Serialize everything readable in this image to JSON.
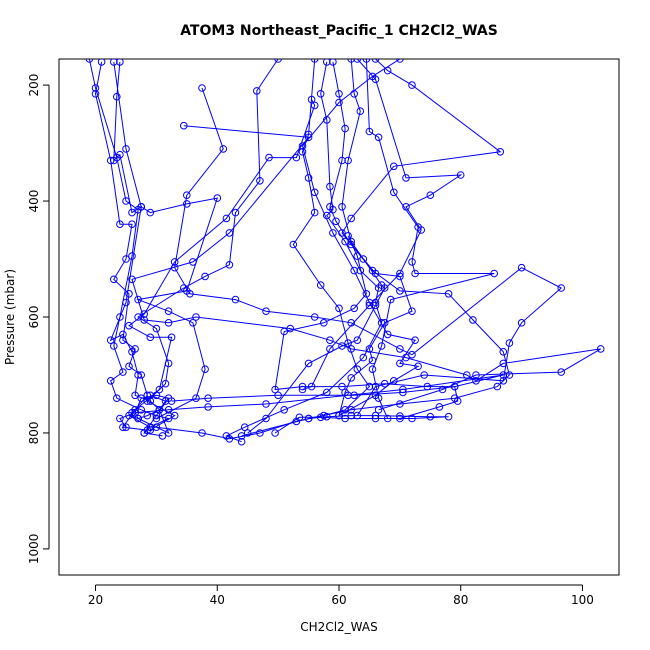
{
  "chart_data": {
    "type": "line",
    "title": "ATOM3 Northeast_Pacific_1 CH2Cl2_WAS",
    "xlabel": "CH2Cl2_WAS",
    "ylabel": "Pressure (mbar)",
    "xlim": [
      14,
      106
    ],
    "ylim": [
      1045,
      155
    ],
    "y_reversed": true,
    "grid": false,
    "legend": "none",
    "line_color": "#0000ff",
    "marker": "open-circle",
    "x_ticks": [
      20,
      40,
      60,
      80,
      100
    ],
    "y_ticks": [
      200,
      400,
      600,
      800,
      1000
    ],
    "x_tick_labels": [
      "20",
      "40",
      "60",
      "80",
      "100"
    ],
    "y_tick_labels": [
      "200",
      "400",
      "600",
      "800",
      "1000"
    ],
    "series": [
      {
        "x": [
          19,
          20,
          23.5,
          25,
          27,
          26,
          24,
          23,
          24.5,
          22.5,
          23.5,
          27.5,
          30,
          32,
          29,
          28,
          31
        ],
        "y": [
          155,
          205,
          325,
          400,
          415,
          495,
          600,
          650,
          695,
          710,
          740,
          760,
          770,
          775,
          790,
          800,
          805
        ]
      },
      {
        "x": [
          21,
          20,
          22.5,
          24,
          26,
          25,
          23,
          25.5,
          24.5,
          26.5,
          25.5,
          27.5,
          28.5,
          26.5,
          24.5,
          28.5
        ],
        "y": [
          160,
          215,
          330,
          440,
          440,
          500,
          535,
          560,
          640,
          655,
          685,
          700,
          735,
          760,
          790,
          795
        ]
      },
      {
        "x": [
          24,
          23.5,
          23,
          24,
          26,
          27.5,
          25,
          22.5,
          24.5,
          26,
          27,
          26.5,
          29,
          30.5,
          32,
          27,
          25.5,
          29
        ],
        "y": [
          160,
          220,
          330,
          320,
          420,
          410,
          575,
          640,
          630,
          660,
          700,
          735,
          745,
          760,
          800,
          775,
          770,
          790
        ]
      },
      {
        "x": [
          23,
          25,
          27.5,
          29,
          35,
          40,
          35,
          27,
          32,
          36,
          38,
          36.5,
          30
        ],
        "y": [
          160,
          310,
          410,
          420,
          405,
          395,
          555,
          570,
          590,
          610,
          690,
          740,
          775
        ]
      },
      {
        "x": [
          50,
          46.5,
          47,
          43,
          42,
          38,
          34.5,
          27,
          30,
          32,
          31.5,
          28.5,
          33,
          29
        ],
        "y": [
          155,
          210,
          365,
          420,
          510,
          530,
          550,
          600,
          620,
          680,
          715,
          745,
          770,
          795
        ]
      },
      {
        "x": [
          56,
          55,
          54,
          55,
          56,
          52.5,
          57,
          60,
          61.5,
          63,
          65,
          61,
          57.5,
          53,
          47,
          42,
          37.5,
          30
        ],
        "y": [
          155,
          285,
          315,
          360,
          420,
          475,
          545,
          585,
          645,
          690,
          720,
          760,
          770,
          780,
          800,
          810,
          800,
          790
        ]
      },
      {
        "x": [
          58,
          57,
          58,
          58.5,
          59,
          58,
          61,
          63.5,
          66.5,
          66,
          67,
          64,
          58,
          51,
          44.5,
          41.5,
          44
        ],
        "y": [
          160,
          215,
          260,
          375,
          415,
          425,
          470,
          520,
          550,
          575,
          610,
          670,
          730,
          760,
          790,
          805,
          815
        ]
      },
      {
        "x": [
          59,
          60,
          61,
          60.5,
          58.5,
          59.5,
          62,
          65.5,
          70,
          78,
          82,
          87,
          88,
          86,
          79,
          70,
          62,
          55,
          44
        ],
        "y": [
          160,
          215,
          275,
          330,
          410,
          435,
          475,
          520,
          555,
          560,
          605,
          660,
          700,
          720,
          740,
          750,
          760,
          775,
          805
        ]
      },
      {
        "x": [
          62,
          62.5,
          63.5,
          61.5,
          60.5,
          62,
          64,
          67,
          67.5,
          66,
          63,
          60.5,
          55,
          48,
          45
        ],
        "y": [
          155,
          215,
          245,
          330,
          410,
          470,
          500,
          545,
          550,
          580,
          640,
          650,
          680,
          775,
          800
        ]
      },
      {
        "x": [
          66,
          68,
          72,
          86.5,
          69,
          62,
          60.5,
          66,
          70,
          72,
          67.5,
          65,
          65.5,
          62,
          61,
          60
        ],
        "y": [
          155,
          175,
          200,
          315,
          340,
          430,
          455,
          525,
          530,
          590,
          610,
          655,
          675,
          705,
          730,
          770
        ]
      },
      {
        "x": [
          70,
          65.5,
          60,
          54,
          56,
          59,
          62.5,
          65,
          68,
          72.5,
          70,
          73,
          69,
          66,
          60
        ],
        "y": [
          155,
          185,
          230,
          305,
          385,
          455,
          520,
          575,
          630,
          640,
          680,
          685,
          710,
          735,
          770
        ]
      },
      {
        "x": [
          63,
          66,
          71,
          80,
          75,
          71,
          73.5,
          70,
          65,
          58.5,
          55.5,
          54
        ],
        "y": [
          155,
          190,
          360,
          355,
          390,
          410,
          450,
          525,
          580,
          655,
          720,
          725
        ]
      },
      {
        "x": [
          64.5,
          65,
          66.5,
          69,
          73,
          72,
          72.5,
          85.5,
          68.5,
          67,
          65.5,
          66.5,
          68
        ],
        "y": [
          155,
          280,
          290,
          385,
          445,
          505,
          525,
          525,
          570,
          650,
          690,
          740,
          775
        ]
      },
      {
        "x": [
          37.5,
          41,
          35,
          33,
          35.5,
          43,
          48,
          56,
          62,
          70,
          72,
          90,
          96.5,
          90,
          88,
          87,
          74,
          66,
          63
        ],
        "y": [
          205,
          310,
          390,
          515,
          560,
          570,
          590,
          600,
          610,
          655,
          665,
          515,
          550,
          610,
          645,
          710,
          700,
          720,
          770
        ]
      },
      {
        "x": [
          34.5,
          55,
          42,
          36,
          26,
          28,
          32,
          36.5,
          52,
          58.5,
          62,
          71,
          81,
          82.5,
          87,
          103,
          96.5,
          82.5,
          77,
          66.5
        ],
        "y": [
          270,
          290,
          455,
          505,
          535,
          605,
          610,
          600,
          620,
          640,
          655,
          670,
          700,
          710,
          680,
          655,
          695,
          700,
          725,
          760
        ]
      },
      {
        "x": [
          55.5,
          56,
          53,
          48.5,
          41.5,
          33,
          28,
          25.5,
          29,
          32.5,
          30.5,
          26
        ],
        "y": [
          225,
          235,
          325,
          325,
          430,
          505,
          595,
          615,
          635,
          635,
          725,
          765
        ]
      },
      {
        "x": [
          61.5,
          63,
          64.5,
          62.5,
          57.5,
          51,
          49.5,
          54,
          60.5,
          67.5,
          74.5,
          79,
          79.5,
          76.5,
          70
        ],
        "y": [
          460,
          495,
          560,
          585,
          610,
          625,
          725,
          720,
          720,
          715,
          720,
          720,
          745,
          755,
          775
        ]
      },
      {
        "x": [
          32.5,
          38.5,
          50,
          62.5,
          70.5,
          79,
          87,
          70.5,
          61.5,
          48,
          38.5,
          32,
          26.5,
          24,
          25
        ],
        "y": [
          745,
          740,
          735,
          735,
          730,
          720,
          700,
          725,
          735,
          750,
          755,
          760,
          765,
          775,
          790
        ]
      },
      {
        "x": [
          55,
          58,
          62,
          66,
          70,
          75,
          78,
          72,
          66,
          61,
          57,
          53.5,
          49.5
        ],
        "y": [
          775,
          772,
          770,
          770,
          771,
          772,
          772,
          775,
          775,
          775,
          773,
          773,
          800
        ]
      },
      {
        "x": [
          29,
          31.5,
          30.5,
          28.5,
          27,
          26.5,
          27.5,
          30,
          32,
          28
        ],
        "y": [
          735,
          745,
          760,
          770,
          775,
          765,
          740,
          735,
          740,
          800
        ]
      }
    ]
  }
}
